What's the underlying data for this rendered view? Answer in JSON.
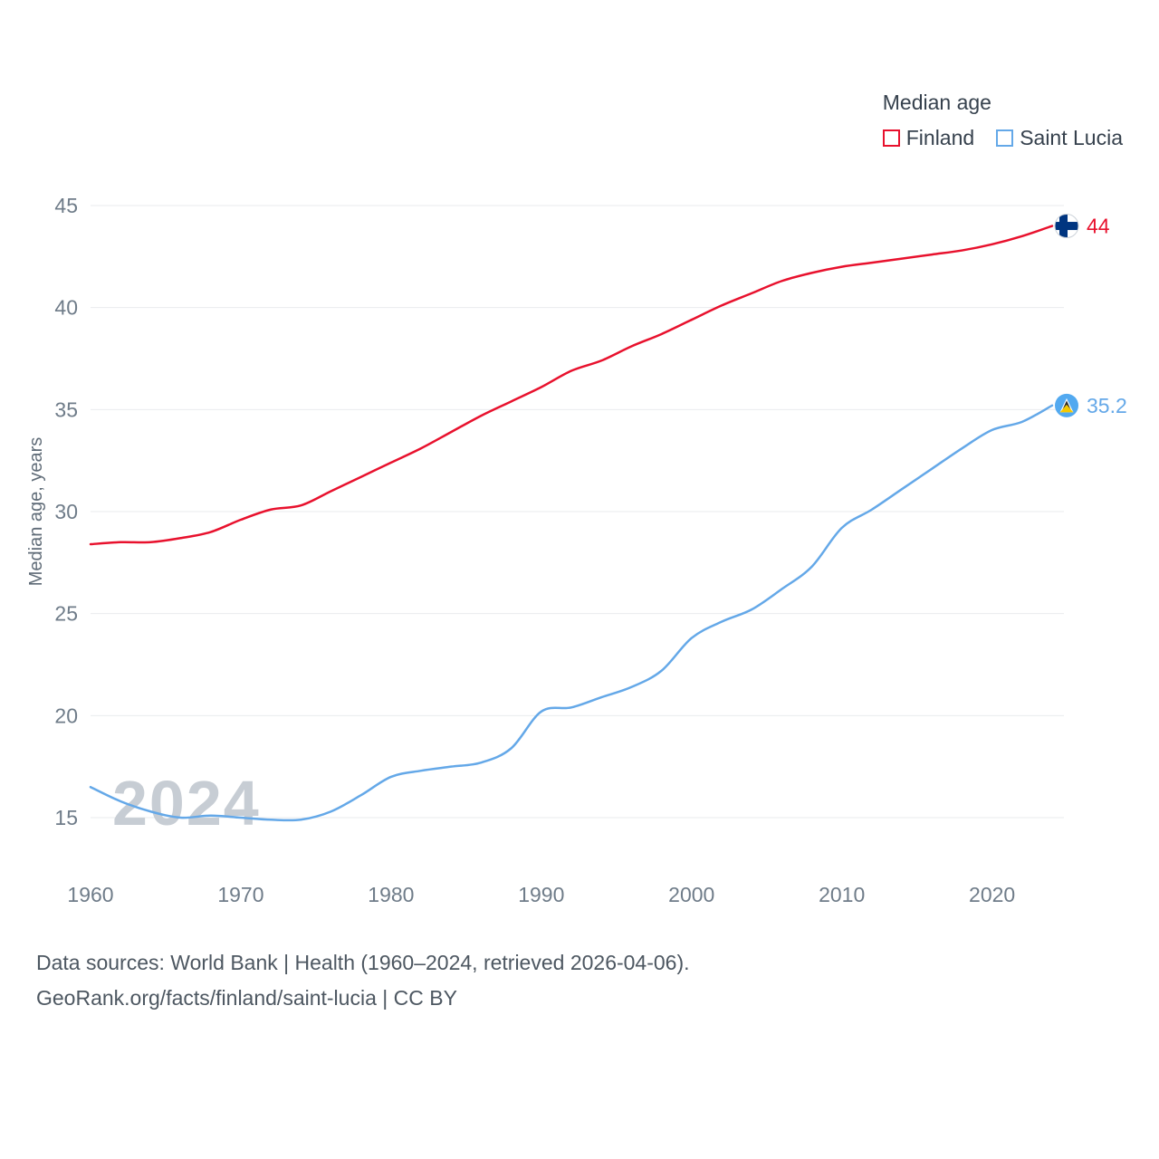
{
  "legend": {
    "title": "Median age",
    "items": [
      {
        "label": "Finland",
        "color": "#e8112d"
      },
      {
        "label": "Saint Lucia",
        "color": "#64a8e8"
      }
    ]
  },
  "watermark": "2024",
  "footer": {
    "line1": "Data sources: World Bank | Health (1960–2024, retrieved 2026-04-06).",
    "line2": "GeoRank.org/facts/finland/saint-lucia | CC BY"
  },
  "colors": {
    "finland_line": "#e8112d",
    "saint_lucia_line": "#64a8e8",
    "finland_flag_blue": "#003580",
    "saint_lucia_flag_blue": "#52a9f0",
    "saint_lucia_flag_gold": "#f5c800",
    "gridline": "#e9ebee",
    "tick_text": "#6f7c89",
    "footer_text": "#4d5761",
    "watermark_text": "#c7cdd4"
  },
  "chart_data": {
    "type": "line",
    "title": "Median age",
    "xlabel": "",
    "ylabel": "Median age, years",
    "xlim": [
      1960,
      2024
    ],
    "ylim": [
      15,
      45
    ],
    "xticks": [
      1960,
      1970,
      1980,
      1990,
      2000,
      2010,
      2020
    ],
    "yticks": [
      15,
      20,
      25,
      30,
      35,
      40,
      45
    ],
    "grid": "horizontal",
    "legend_position": "top-right",
    "x": [
      1960,
      1962,
      1964,
      1966,
      1968,
      1970,
      1972,
      1974,
      1976,
      1978,
      1980,
      1982,
      1984,
      1986,
      1988,
      1990,
      1992,
      1994,
      1996,
      1998,
      2000,
      2002,
      2004,
      2006,
      2008,
      2010,
      2012,
      2014,
      2016,
      2018,
      2020,
      2022,
      2024
    ],
    "series": [
      {
        "name": "Finland",
        "color": "#e8112d",
        "end_label": "44",
        "values": [
          28.4,
          28.5,
          28.5,
          28.7,
          29.0,
          29.6,
          30.1,
          30.3,
          31.0,
          31.7,
          32.4,
          33.1,
          33.9,
          34.7,
          35.4,
          36.1,
          36.9,
          37.4,
          38.1,
          38.7,
          39.4,
          40.1,
          40.7,
          41.3,
          41.7,
          42.0,
          42.2,
          42.4,
          42.6,
          42.8,
          43.1,
          43.5,
          44.0
        ]
      },
      {
        "name": "Saint Lucia",
        "color": "#64a8e8",
        "end_label": "35.2",
        "values": [
          16.5,
          15.8,
          15.3,
          15.0,
          15.1,
          15.0,
          14.9,
          14.9,
          15.3,
          16.1,
          17.0,
          17.3,
          17.5,
          17.7,
          18.4,
          20.2,
          20.4,
          20.9,
          21.4,
          22.2,
          23.8,
          24.6,
          25.2,
          26.2,
          27.3,
          29.2,
          30.1,
          31.1,
          32.1,
          33.1,
          34.0,
          34.4,
          35.2
        ]
      }
    ]
  }
}
